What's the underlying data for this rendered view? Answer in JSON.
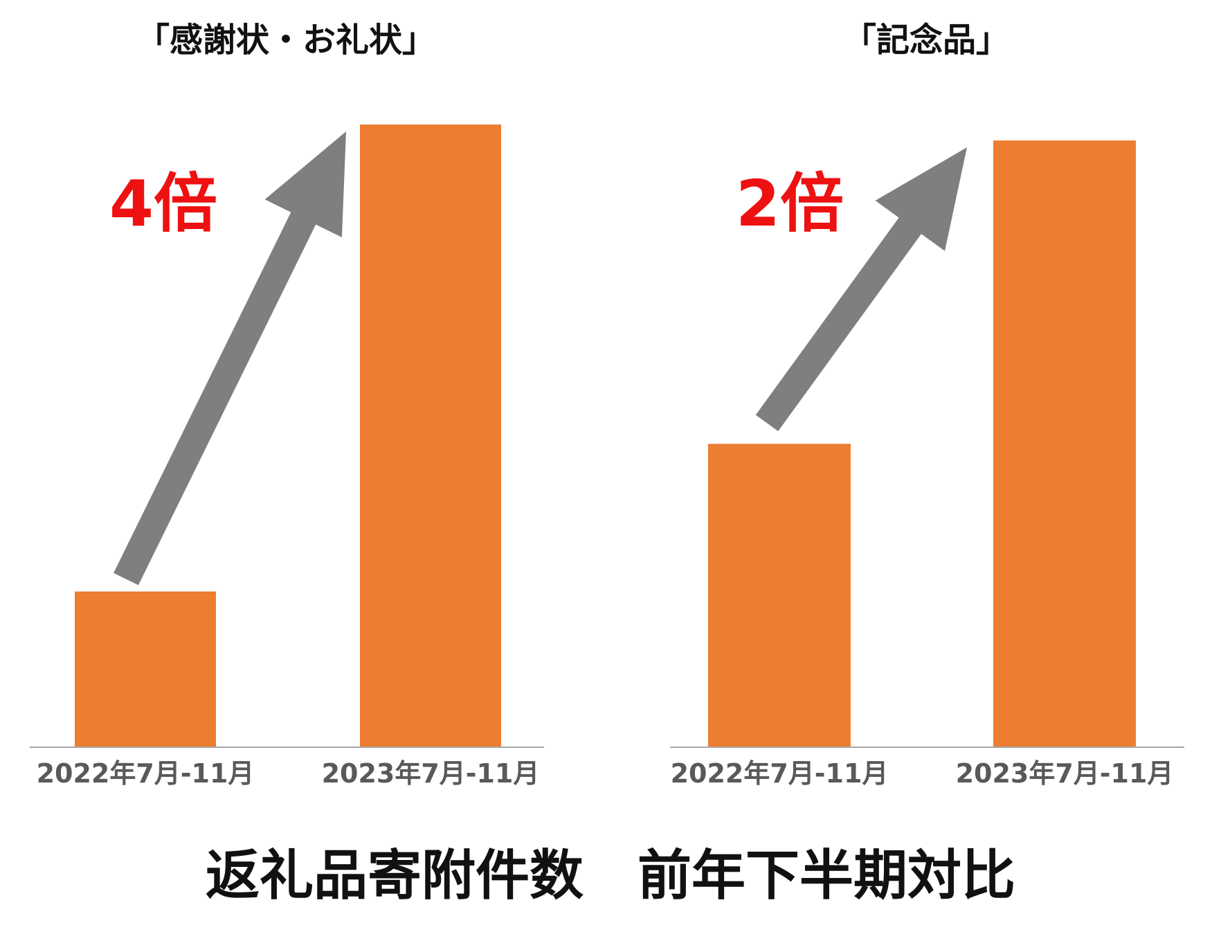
{
  "chart_data": [
    {
      "type": "bar",
      "title": "「感謝状・お礼状」",
      "categories": [
        "2022年7月-11月",
        "2023年7月-11月"
      ],
      "values": [
        1,
        4
      ],
      "annotation": "4倍",
      "color": "#ED7D31"
    },
    {
      "type": "bar",
      "title": "「記念品」",
      "categories": [
        "2022年7月-11月",
        "2023年7月-11月"
      ],
      "values": [
        1,
        2
      ],
      "annotation": "2倍",
      "color": "#ED7D31"
    }
  ],
  "caption": "返礼品寄附件数　前年下半期対比",
  "colors": {
    "bar": "#ED7D31",
    "arrow": "#7F7F7F",
    "axis": "#A6A6A6",
    "ratio_text": "#EE1111"
  }
}
